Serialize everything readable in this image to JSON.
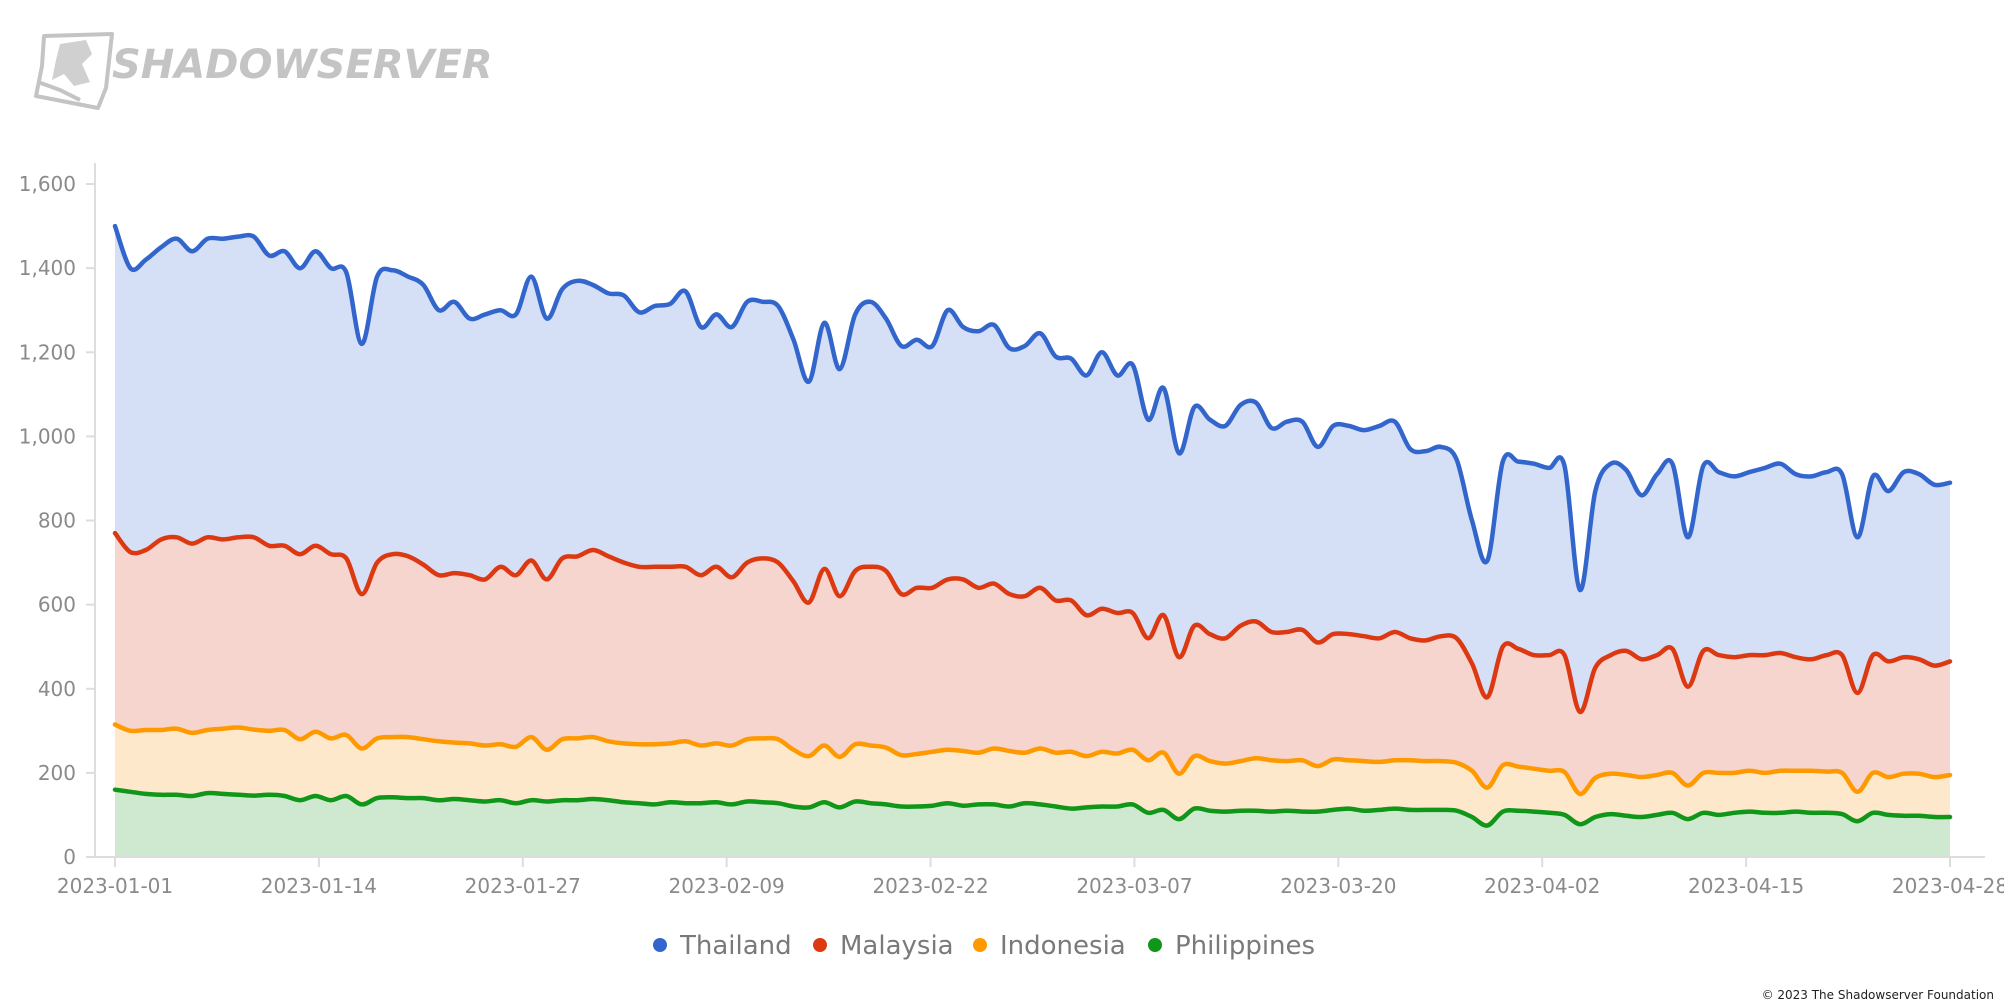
{
  "header": {
    "logo_text": "SHADOWSERVER"
  },
  "footer": {
    "copyright": "© 2023 The Shadowserver Foundation"
  },
  "chart_data": {
    "type": "area",
    "title": "",
    "xlabel": "",
    "ylabel": "",
    "ylim": [
      0,
      1650
    ],
    "y_ticks": [
      0,
      200,
      400,
      600,
      800,
      1000,
      1200,
      1400,
      1600
    ],
    "y_tick_labels": [
      "0",
      "200",
      "400",
      "600",
      "800",
      "1,000",
      "1,200",
      "1,400",
      "1,600"
    ],
    "x_ticks": [
      "2023-01-01",
      "2023-01-14",
      "2023-01-27",
      "2023-02-09",
      "2023-02-22",
      "2023-03-07",
      "2023-03-20",
      "2023-04-02",
      "2023-04-15",
      "2023-04-28"
    ],
    "x_range": [
      "2023-01-01",
      "2023-04-28"
    ],
    "grid": false,
    "legend_position": "bottom-center",
    "stacked": false,
    "series": [
      {
        "name": "Thailand",
        "color": "#3366cc",
        "fill": "#d5dff5",
        "values": [
          1500,
          1400,
          1420,
          1450,
          1470,
          1440,
          1470,
          1470,
          1475,
          1475,
          1430,
          1440,
          1400,
          1440,
          1400,
          1390,
          1220,
          1380,
          1395,
          1380,
          1360,
          1300,
          1320,
          1280,
          1290,
          1300,
          1290,
          1380,
          1280,
          1350,
          1370,
          1360,
          1340,
          1335,
          1295,
          1310,
          1315,
          1345,
          1260,
          1290,
          1260,
          1320,
          1320,
          1310,
          1230,
          1130,
          1270,
          1160,
          1290,
          1320,
          1280,
          1215,
          1230,
          1215,
          1300,
          1260,
          1250,
          1265,
          1210,
          1215,
          1245,
          1190,
          1185,
          1145,
          1200,
          1145,
          1170,
          1040,
          1115,
          960,
          1070,
          1040,
          1025,
          1075,
          1080,
          1020,
          1035,
          1035,
          975,
          1025,
          1025,
          1015,
          1025,
          1035,
          970,
          965,
          975,
          945,
          800,
          705,
          940,
          940,
          935,
          925,
          930,
          635,
          870,
          935,
          920,
          860,
          910,
          935,
          760,
          930,
          915,
          905,
          915,
          925,
          935,
          910,
          905,
          915,
          910,
          760,
          905,
          870,
          915,
          910,
          885,
          890
        ]
      },
      {
        "name": "Malaysia",
        "color": "#dc3912",
        "fill": "#f6d5cf",
        "values": [
          770,
          725,
          730,
          755,
          760,
          745,
          760,
          755,
          760,
          760,
          740,
          740,
          720,
          740,
          720,
          710,
          625,
          700,
          720,
          715,
          695,
          670,
          675,
          670,
          660,
          690,
          670,
          705,
          660,
          710,
          715,
          730,
          715,
          700,
          690,
          690,
          690,
          690,
          670,
          690,
          665,
          700,
          710,
          700,
          655,
          605,
          685,
          620,
          680,
          690,
          680,
          625,
          640,
          640,
          660,
          660,
          640,
          650,
          625,
          620,
          640,
          610,
          610,
          575,
          590,
          580,
          580,
          520,
          575,
          475,
          550,
          530,
          520,
          550,
          560,
          535,
          535,
          540,
          510,
          530,
          530,
          525,
          520,
          535,
          520,
          515,
          525,
          520,
          460,
          380,
          500,
          495,
          480,
          480,
          480,
          345,
          450,
          480,
          490,
          470,
          480,
          495,
          405,
          490,
          480,
          475,
          480,
          480,
          485,
          475,
          470,
          480,
          480,
          390,
          480,
          465,
          475,
          470,
          455,
          465
        ]
      },
      {
        "name": "Indonesia",
        "color": "#ff9900",
        "fill": "#fde8cc",
        "values": [
          315,
          300,
          302,
          302,
          305,
          295,
          302,
          305,
          308,
          303,
          300,
          302,
          280,
          298,
          282,
          290,
          258,
          282,
          285,
          285,
          280,
          275,
          272,
          270,
          265,
          268,
          262,
          285,
          255,
          280,
          282,
          285,
          275,
          270,
          268,
          268,
          270,
          275,
          265,
          270,
          265,
          280,
          282,
          280,
          255,
          240,
          265,
          238,
          268,
          265,
          260,
          242,
          245,
          250,
          255,
          252,
          248,
          258,
          252,
          248,
          258,
          248,
          250,
          240,
          250,
          246,
          255,
          230,
          248,
          198,
          240,
          228,
          222,
          228,
          235,
          230,
          228,
          230,
          216,
          232,
          230,
          228,
          226,
          230,
          230,
          228,
          228,
          224,
          205,
          165,
          218,
          215,
          210,
          205,
          202,
          150,
          188,
          198,
          195,
          190,
          195,
          200,
          170,
          200,
          200,
          200,
          205,
          200,
          205,
          205,
          205,
          203,
          200,
          155,
          200,
          190,
          198,
          198,
          190,
          195
        ]
      },
      {
        "name": "Philippines",
        "color": "#109618",
        "fill": "#cfe8d0",
        "values": [
          160,
          155,
          150,
          148,
          148,
          145,
          152,
          150,
          148,
          146,
          148,
          145,
          135,
          145,
          135,
          145,
          125,
          140,
          142,
          140,
          140,
          135,
          138,
          135,
          132,
          135,
          128,
          135,
          132,
          135,
          135,
          138,
          135,
          130,
          128,
          125,
          130,
          128,
          128,
          130,
          125,
          132,
          130,
          128,
          120,
          118,
          130,
          118,
          132,
          128,
          125,
          120,
          120,
          122,
          128,
          122,
          125,
          125,
          120,
          128,
          125,
          120,
          115,
          118,
          120,
          120,
          125,
          105,
          112,
          90,
          115,
          110,
          108,
          110,
          110,
          108,
          110,
          108,
          108,
          112,
          115,
          110,
          112,
          115,
          112,
          112,
          112,
          110,
          95,
          75,
          108,
          110,
          108,
          105,
          100,
          78,
          95,
          102,
          98,
          95,
          100,
          105,
          90,
          105,
          100,
          105,
          108,
          105,
          105,
          108,
          105,
          105,
          102,
          85,
          105,
          100,
          98,
          98,
          95,
          95
        ]
      }
    ]
  }
}
